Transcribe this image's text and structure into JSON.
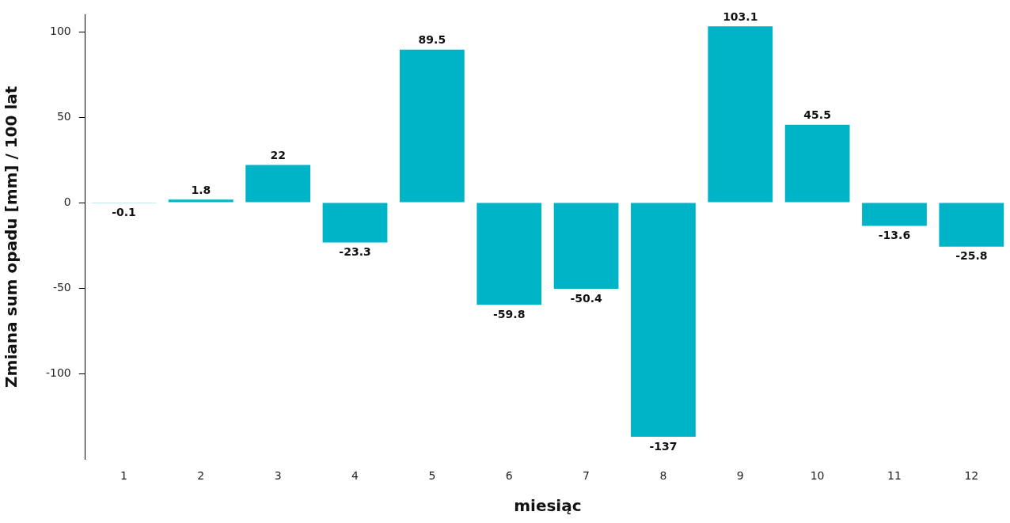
{
  "chart_data": {
    "type": "bar",
    "xlabel": "miesiąc",
    "ylabel": "Zmiana sum opadu [mm] / 100 lat",
    "categories": [
      "1",
      "2",
      "3",
      "4",
      "5",
      "6",
      "7",
      "8",
      "9",
      "10",
      "11",
      "12"
    ],
    "values": [
      -0.1,
      1.8,
      22,
      -23.3,
      89.5,
      -59.8,
      -50.4,
      -137,
      103.1,
      45.5,
      -13.6,
      -25.8
    ],
    "color": "#00b4c8",
    "ylim": [
      -150,
      110
    ],
    "yticks": [
      -100,
      -50,
      0,
      50,
      100
    ],
    "grid": false,
    "legend": false,
    "data_labels": true
  }
}
